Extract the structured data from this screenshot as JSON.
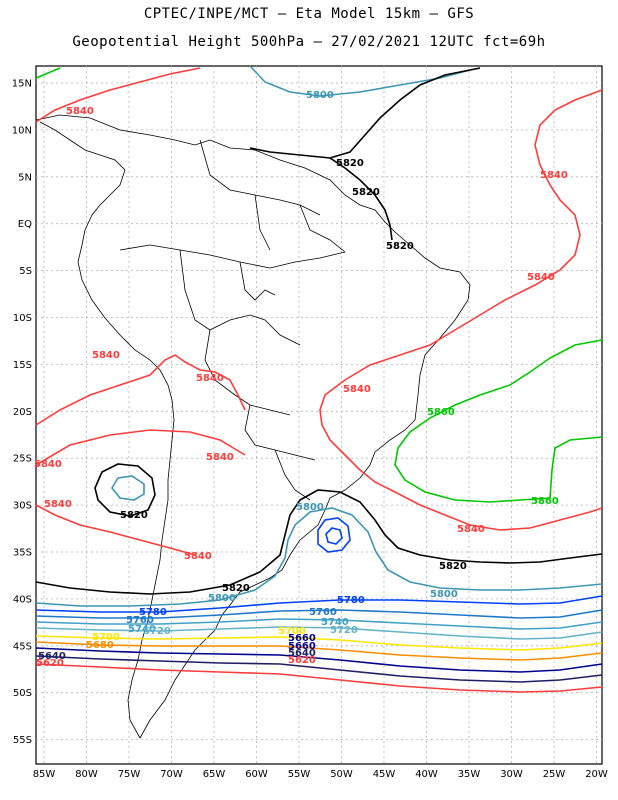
{
  "title_line1": "CPTEC/INPE/MCT –  Eta Model 15km – GFS",
  "title_line2": "Geopotential Height 500hPa – 27/02/2021 12UTC fct=69h",
  "lat_labels": [
    "15N",
    "10N",
    "5N",
    "EQ",
    "5S",
    "10S",
    "15S",
    "20S",
    "25S",
    "30S",
    "35S",
    "40S",
    "45S",
    "50S",
    "55S"
  ],
  "lon_labels": [
    "85W",
    "80W",
    "75W",
    "70W",
    "65W",
    "60W",
    "55W",
    "50W",
    "45W",
    "40W",
    "35W",
    "30W",
    "25W",
    "20W"
  ],
  "colors": {
    "c5860": "#00c800",
    "c5840": "#ff3c3c",
    "c5820": "#000000",
    "c5800": "#3c96b4",
    "c5780": "#0040ff",
    "c5760": "#1e78c8",
    "c5740": "#40a0c8",
    "c5720": "#64b4c8",
    "c5700": "#ffe600",
    "c5680": "#ff8c00",
    "c5660": "#00008c",
    "c5640": "#1e1e64",
    "grid": "#b4b4b4"
  },
  "contour_labels": [
    {
      "key": "a",
      "text": "5800",
      "color": "#3c96b4"
    },
    {
      "key": "b",
      "text": "5820",
      "color": "#000000"
    },
    {
      "key": "c",
      "text": "5820",
      "color": "#000000"
    },
    {
      "key": "d",
      "text": "5820",
      "color": "#000000"
    },
    {
      "key": "e",
      "text": "5840",
      "color": "#ff3c3c"
    },
    {
      "key": "f",
      "text": "5840",
      "color": "#ff3c3c"
    },
    {
      "key": "g",
      "text": "5840",
      "color": "#ff3c3c"
    },
    {
      "key": "h",
      "text": "5840",
      "color": "#ff3c3c"
    },
    {
      "key": "i",
      "text": "5840",
      "color": "#ff3c3c"
    },
    {
      "key": "j",
      "text": "5840",
      "color": "#ff3c3c"
    },
    {
      "key": "k",
      "text": "5840",
      "color": "#ff3c3c"
    },
    {
      "key": "l",
      "text": "5840",
      "color": "#ff3c3c"
    },
    {
      "key": "m",
      "text": "5840",
      "color": "#ff3c3c"
    },
    {
      "key": "n",
      "text": "5840",
      "color": "#ff3c3c"
    },
    {
      "key": "o",
      "text": "5840",
      "color": "#ff3c3c"
    },
    {
      "key": "p",
      "text": "5860",
      "color": "#00c800"
    },
    {
      "key": "q",
      "text": "5860",
      "color": "#00c800"
    },
    {
      "key": "r",
      "text": "5820",
      "color": "#000000"
    },
    {
      "key": "s",
      "text": "5800",
      "color": "#3c96b4"
    },
    {
      "key": "t",
      "text": "5820",
      "color": "#000000"
    },
    {
      "key": "u",
      "text": "5820",
      "color": "#000000"
    },
    {
      "key": "v",
      "text": "5800",
      "color": "#3c96b4"
    },
    {
      "key": "w",
      "text": "5800",
      "color": "#3c96b4"
    },
    {
      "key": "x",
      "text": "5780",
      "color": "#0040ff"
    },
    {
      "key": "y",
      "text": "5780",
      "color": "#0040ff"
    },
    {
      "key": "z",
      "text": "5760",
      "color": "#1e78c8"
    },
    {
      "key": "aa",
      "text": "5760",
      "color": "#1e78c8"
    },
    {
      "key": "ab",
      "text": "5740",
      "color": "#40a0c8"
    },
    {
      "key": "ac",
      "text": "5740",
      "color": "#40a0c8"
    },
    {
      "key": "ad",
      "text": "5720",
      "color": "#64b4c8"
    },
    {
      "key": "ae",
      "text": "5720",
      "color": "#64b4c8"
    },
    {
      "key": "af",
      "text": "5700",
      "color": "#ffe600"
    },
    {
      "key": "ag",
      "text": "5700",
      "color": "#ffe600"
    },
    {
      "key": "ah",
      "text": "5680",
      "color": "#ff8c00"
    },
    {
      "key": "ai",
      "text": "5660",
      "color": "#00008c"
    },
    {
      "key": "aj",
      "text": "5640",
      "color": "#1e1e64"
    },
    {
      "key": "ak",
      "text": "5660",
      "color": "#00008c"
    },
    {
      "key": "al",
      "text": "5640",
      "color": "#1e1e64"
    },
    {
      "key": "am",
      "text": "5620",
      "color": "#ff3c3c"
    },
    {
      "key": "an",
      "text": "5620",
      "color": "#ff3c3c"
    }
  ]
}
